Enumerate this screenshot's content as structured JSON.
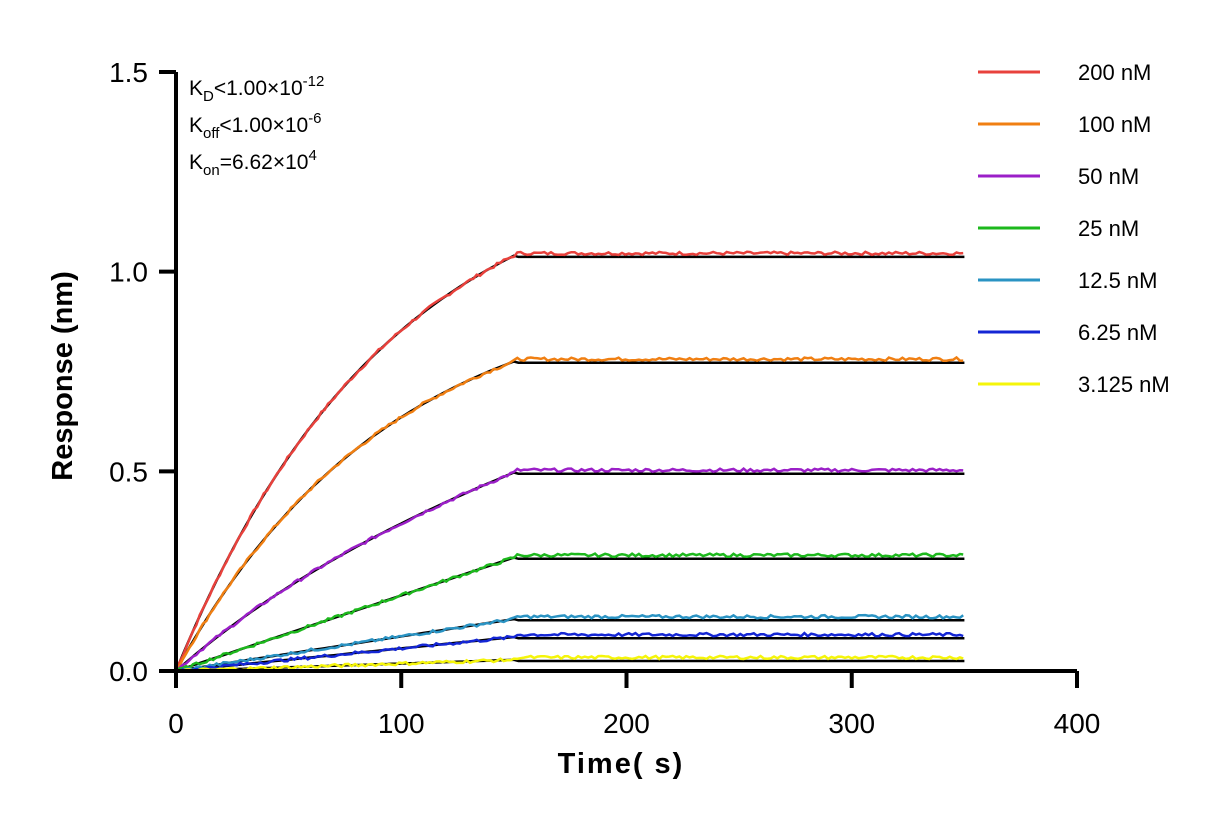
{
  "chart_data": {
    "type": "line",
    "xlabel": "Time( s)",
    "ylabel": "Response (nm)",
    "xlim": [
      0,
      400
    ],
    "ylim": [
      0,
      1.5
    ],
    "x_ticks": [
      "0",
      "100",
      "200",
      "300",
      "400"
    ],
    "y_ticks": [
      "0.0",
      "0.5",
      "1.0",
      "1.5"
    ],
    "grid": false,
    "legend_position": "top-right",
    "association_end": 150,
    "x_end": 350,
    "series": [
      {
        "name": "200 nM",
        "color": "#e8413c",
        "plateau": 1.04
      },
      {
        "name": "100 nM",
        "color": "#f07f12",
        "plateau": 0.775
      },
      {
        "name": "50 nM",
        "color": "#9b1fc8",
        "plateau": 0.497
      },
      {
        "name": "25 nM",
        "color": "#1db81d",
        "plateau": 0.284
      },
      {
        "name": "12.5 nM",
        "color": "#2a93c3",
        "plateau": 0.13
      },
      {
        "name": "6.25 nM",
        "color": "#1426d4",
        "plateau": 0.085
      },
      {
        "name": "3.125 nM",
        "color": "#f5f50a",
        "plateau": 0.028
      }
    ],
    "fit_color": "#000000",
    "annotations": [
      {
        "main": "K",
        "sub": "D",
        "rest": "<1.00×10",
        "sup": "-12"
      },
      {
        "main": "K",
        "sub": "off",
        "rest": "<1.00×10",
        "sup": "-6"
      },
      {
        "main": "K",
        "sub": "on",
        "rest": "=6.62×10",
        "sup": "4"
      }
    ]
  }
}
